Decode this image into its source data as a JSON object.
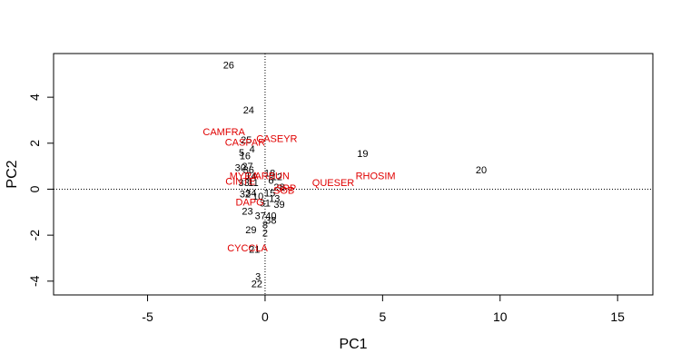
{
  "chart_data": {
    "type": "scatter",
    "title": "",
    "xlabel": "PC1",
    "ylabel": "PC2",
    "xlim": [
      -9,
      16.5
    ],
    "ylim": [
      -4.6,
      5.9
    ],
    "xticks": [
      -5,
      0,
      5,
      10,
      15
    ],
    "yticks": [
      -4,
      -2,
      0,
      2,
      4
    ],
    "reference_lines": {
      "x": 0,
      "y": 0,
      "style": "dotted"
    },
    "grid": false,
    "colors": {
      "points": "#000000",
      "variables": "#e00000"
    },
    "points": [
      {
        "label": "26",
        "x": -1.55,
        "y": 5.4
      },
      {
        "label": "24",
        "x": -0.7,
        "y": 3.45
      },
      {
        "label": "25",
        "x": -0.8,
        "y": 2.15
      },
      {
        "label": "4",
        "x": -0.55,
        "y": 1.75
      },
      {
        "label": "5",
        "x": -1.0,
        "y": 1.6
      },
      {
        "label": "16",
        "x": -0.85,
        "y": 1.45
      },
      {
        "label": "27",
        "x": -0.75,
        "y": 1.0
      },
      {
        "label": "30",
        "x": -1.05,
        "y": 0.95
      },
      {
        "label": "36",
        "x": -0.7,
        "y": 0.85
      },
      {
        "label": "18",
        "x": 0.2,
        "y": 0.7
      },
      {
        "label": "14",
        "x": -0.6,
        "y": 0.6
      },
      {
        "label": "12",
        "x": 0.5,
        "y": 0.55
      },
      {
        "label": "6",
        "x": 0.25,
        "y": 0.4
      },
      {
        "label": "33",
        "x": -0.9,
        "y": 0.3
      },
      {
        "label": "11",
        "x": -0.5,
        "y": 0.3
      },
      {
        "label": "28",
        "x": 0.6,
        "y": 0.1
      },
      {
        "label": "15",
        "x": 0.2,
        "y": -0.15
      },
      {
        "label": "32",
        "x": -0.85,
        "y": -0.2
      },
      {
        "label": "34",
        "x": -0.6,
        "y": -0.15
      },
      {
        "label": "10",
        "x": -0.3,
        "y": -0.3
      },
      {
        "label": "13",
        "x": 0.4,
        "y": -0.4
      },
      {
        "label": "31",
        "x": 0.0,
        "y": -0.6
      },
      {
        "label": "39",
        "x": 0.6,
        "y": -0.65
      },
      {
        "label": "23",
        "x": -0.75,
        "y": -0.95
      },
      {
        "label": "37",
        "x": -0.2,
        "y": -1.15
      },
      {
        "label": "40",
        "x": 0.25,
        "y": -1.15
      },
      {
        "label": "38",
        "x": 0.25,
        "y": -1.35
      },
      {
        "label": "8",
        "x": 0.0,
        "y": -1.55
      },
      {
        "label": "29",
        "x": -0.6,
        "y": -1.75
      },
      {
        "label": "2",
        "x": 0.0,
        "y": -1.9
      },
      {
        "label": "21",
        "x": -0.45,
        "y": -2.6
      },
      {
        "label": "3",
        "x": -0.3,
        "y": -3.8
      },
      {
        "label": "22",
        "x": -0.35,
        "y": -4.1
      },
      {
        "label": "19",
        "x": 4.15,
        "y": 1.55
      },
      {
        "label": "20",
        "x": 9.2,
        "y": 0.85
      }
    ],
    "variables": [
      {
        "label": "CAMFRA",
        "x": -1.75,
        "y": 2.5
      },
      {
        "label": "CASPAR",
        "x": -0.85,
        "y": 2.05
      },
      {
        "label": "CASEYR",
        "x": 0.5,
        "y": 2.2
      },
      {
        "label": "RHOSIM",
        "x": 4.7,
        "y": 0.6
      },
      {
        "label": "QUESER",
        "x": 2.9,
        "y": 0.3
      },
      {
        "label": "MYRA",
        "x": -0.9,
        "y": 0.6
      },
      {
        "label": "ARBUN",
        "x": 0.3,
        "y": 0.6
      },
      {
        "label": "CINTE",
        "x": -1.05,
        "y": 0.35
      },
      {
        "label": "SPP",
        "x": 0.9,
        "y": 0.05
      },
      {
        "label": "SOB",
        "x": 0.8,
        "y": -0.05
      },
      {
        "label": "DAPG",
        "x": -0.65,
        "y": -0.55
      },
      {
        "label": "CYCCLA",
        "x": -0.75,
        "y": -2.55
      }
    ]
  }
}
